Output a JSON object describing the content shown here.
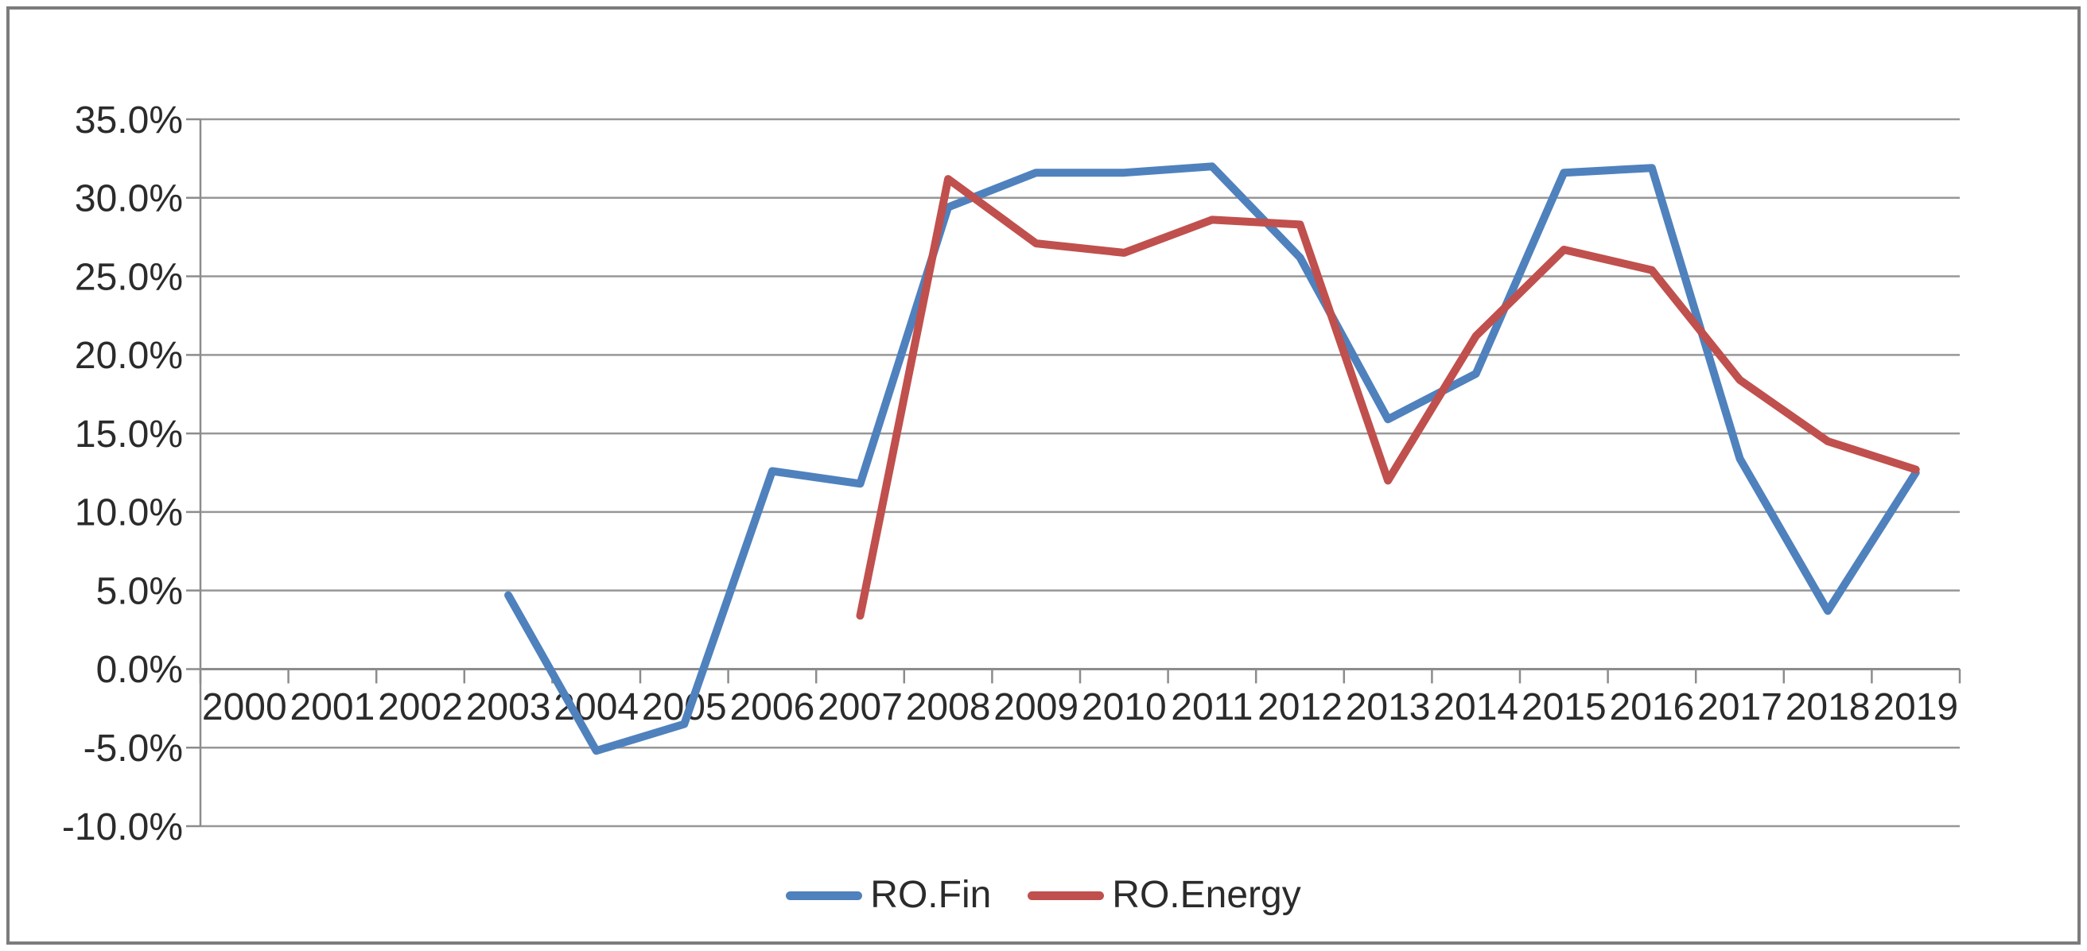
{
  "chart_data": {
    "type": "line",
    "title": "",
    "xlabel": "",
    "ylabel": "",
    "categories": [
      "2000",
      "2001",
      "2002",
      "2003",
      "2004",
      "2005",
      "2006",
      "2007",
      "2008",
      "2009",
      "2010",
      "2011",
      "2012",
      "2013",
      "2014",
      "2015",
      "2016",
      "2017",
      "2018",
      "2019"
    ],
    "series": [
      {
        "name": "RO.Fin",
        "color": "#4f81bd",
        "values": [
          null,
          null,
          null,
          4.7,
          -5.2,
          -3.5,
          12.6,
          11.8,
          29.4,
          31.6,
          31.6,
          32.0,
          26.2,
          15.9,
          18.8,
          31.6,
          31.9,
          13.4,
          3.7,
          12.5
        ]
      },
      {
        "name": "RO.Energy",
        "color": "#c0504d",
        "values": [
          null,
          null,
          null,
          null,
          null,
          null,
          null,
          3.4,
          31.2,
          27.1,
          26.5,
          28.6,
          28.3,
          12.0,
          21.2,
          26.7,
          25.4,
          18.4,
          14.5,
          12.7
        ]
      }
    ],
    "ylim": [
      -10,
      35
    ],
    "y_tick_step": 5,
    "y_tick_labels": [
      "35.0%",
      "30.0%",
      "25.0%",
      "20.0%",
      "15.0%",
      "10.0%",
      "5.0%",
      "0.0%",
      "-5.0%",
      "-10.0%"
    ],
    "grid": "horizontal",
    "legend_position": "bottom"
  },
  "styles": {
    "background": "#ffffff",
    "frame_border_color": "#7c7c7c",
    "grid_color": "#979797",
    "axis_color": "#8c8c8c",
    "text_color": "#2b2b2b"
  }
}
